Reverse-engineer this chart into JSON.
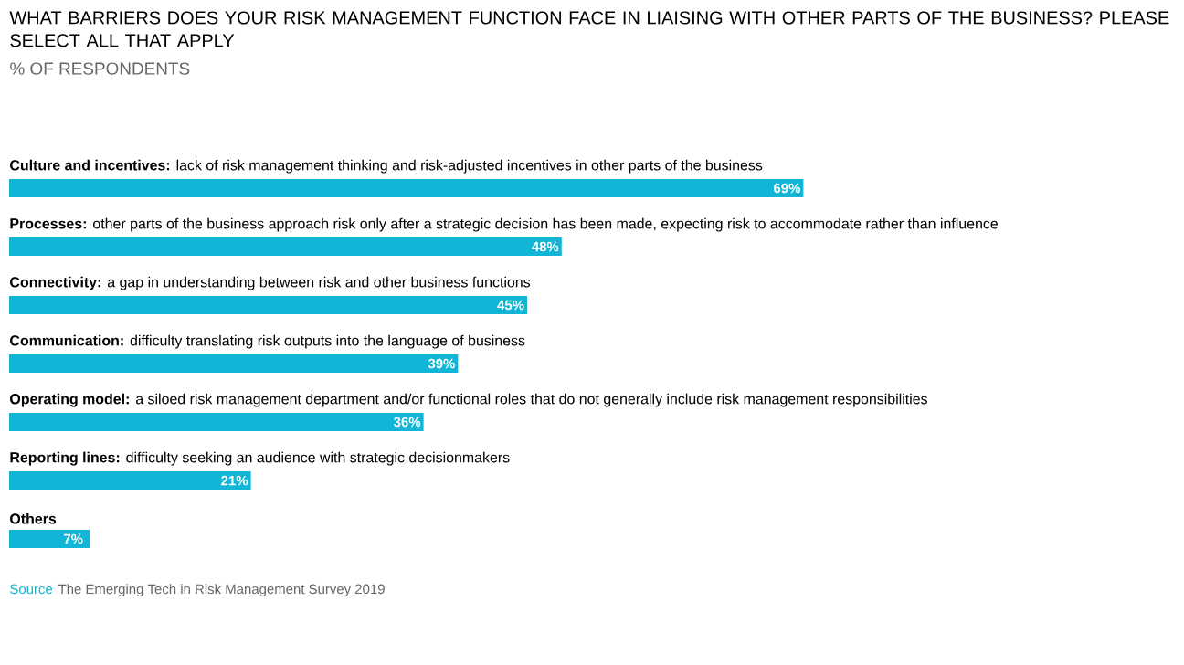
{
  "chart_data": {
    "type": "bar",
    "orientation": "horizontal",
    "title": "WHAT BARRIERS DOES YOUR RISK MANAGEMENT FUNCTION FACE IN LIAISING WITH OTHER PARTS OF THE BUSINESS? PLEASE SELECT ALL THAT APPLY",
    "subtitle": "% OF RESPONDENTS",
    "categories": [
      "**Culture and incentives:** lack of risk management thinking and risk-adjusted incentives in other parts of the business",
      "**Processes:** other parts of the business approach risk only after a strategic decision has been made, expecting risk to accommodate rather than influence",
      "**Connectivity:** a gap in understanding between risk and other business functions",
      "**Communication:** difficulty translating risk outputs into the language of business",
      "**Operating model:** a siloed risk management department and/or functional roles that do not generally include risk management responsibilities",
      "**Reporting lines:** difficulty seeking an audience with strategic decisionmakers",
      "**Others**"
    ],
    "values": [
      69,
      48,
      45,
      39,
      36,
      21,
      7
    ],
    "value_labels": [
      "69%",
      "48%",
      "45%",
      "39%",
      "36%",
      "21%",
      "7%"
    ],
    "color": "#12b5d6",
    "annotations": [
      "Source",
      "The Emerging Tech in Risk Management Survey 2019"
    ]
  }
}
